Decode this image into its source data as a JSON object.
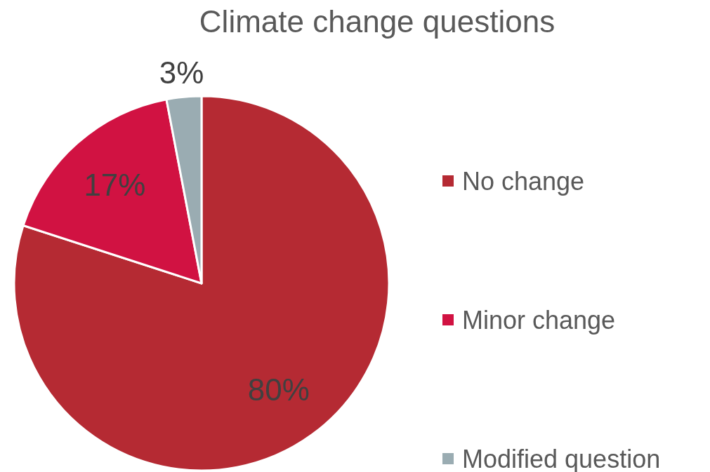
{
  "chart_data": {
    "type": "pie",
    "title": "Climate change questions",
    "categories": [
      "No change",
      "Minor change",
      "Modified question"
    ],
    "values": [
      80,
      17,
      3
    ],
    "colors": [
      "#b52a33",
      "#d11242",
      "#9aacb2"
    ],
    "value_labels": [
      "80%",
      "17%",
      "3%"
    ],
    "legend": "right"
  }
}
